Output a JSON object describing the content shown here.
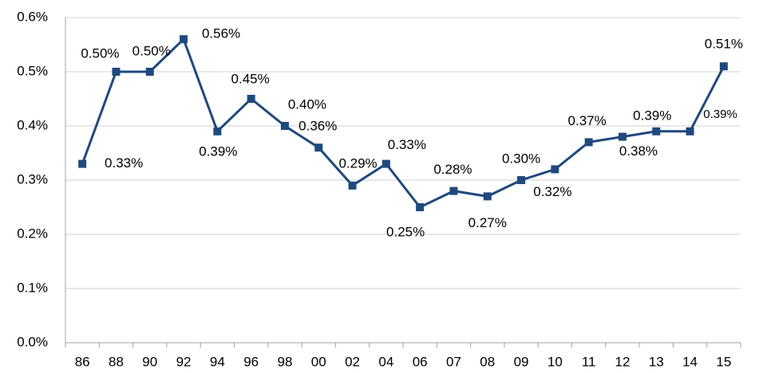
{
  "chart_data": {
    "type": "line",
    "categories": [
      "86",
      "88",
      "90",
      "92",
      "94",
      "96",
      "98",
      "00",
      "02",
      "04",
      "06",
      "07",
      "08",
      "09",
      "10",
      "11",
      "12",
      "13",
      "14",
      "15"
    ],
    "series": [
      {
        "name": null,
        "color": "#1f497d",
        "values": [
          0.33,
          0.5,
          0.5,
          0.56,
          0.39,
          0.45,
          0.4,
          0.36,
          0.29,
          0.33,
          0.25,
          0.28,
          0.27,
          0.3,
          0.32,
          0.37,
          0.38,
          0.39,
          0.39,
          0.51
        ],
        "value_labels": [
          "0.33%",
          "0.50%",
          "0.50%",
          "0.56%",
          "0.39%",
          "0.45%",
          "0.40%",
          "0.36%",
          "0.29%",
          "0.33%",
          "0.25%",
          "0.28%",
          "0.27%",
          "0.30%",
          "0.32%",
          "0.37%",
          "0.38%",
          "0.39%",
          "0.39%",
          "0.51%"
        ]
      }
    ],
    "ylim": [
      0,
      0.6
    ],
    "yticks": [
      {
        "value": 0,
        "label": "0.0%"
      },
      {
        "value": 0.1,
        "label": "0.1%"
      },
      {
        "value": 0.2,
        "label": "0.2%"
      },
      {
        "value": 0.3,
        "label": "0.3%"
      },
      {
        "value": 0.4,
        "label": "0.4%"
      },
      {
        "value": 0.5,
        "label": "0.5%"
      },
      {
        "value": 0.6,
        "label": "0.6%"
      }
    ],
    "grid": true
  }
}
